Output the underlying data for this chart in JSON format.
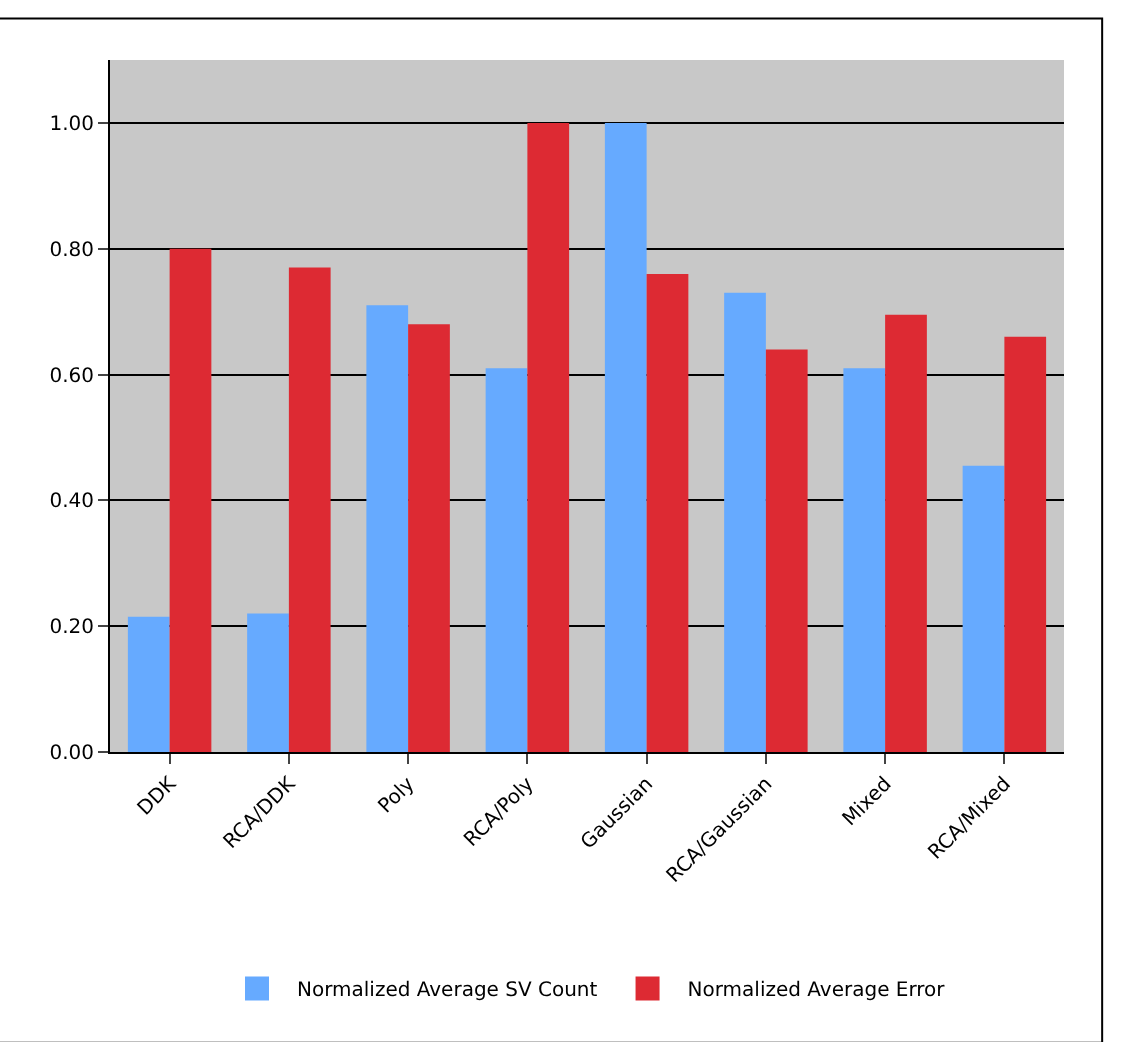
{
  "chart_data": {
    "type": "bar",
    "categories": [
      "DDK",
      "RCA/DDK",
      "Poly",
      "RCA/Poly",
      "Gaussian",
      "RCA/Gaussian",
      "Mixed",
      "RCA/Mixed"
    ],
    "series": [
      {
        "name": "Normalized Average SV Count",
        "color": "#66aaff",
        "values": [
          0.215,
          0.22,
          0.71,
          0.61,
          1.0,
          0.73,
          0.61,
          0.455
        ]
      },
      {
        "name": "Normalized Average Error",
        "color": "#dd2a33",
        "values": [
          0.8,
          0.77,
          0.68,
          1.0,
          0.76,
          0.64,
          0.695,
          0.66
        ]
      }
    ],
    "ylim": [
      0,
      1.1
    ],
    "yticks": [
      {
        "value": 0,
        "label": "0.00"
      },
      {
        "value": 0.2,
        "label": "0.20"
      },
      {
        "value": 0.4,
        "label": "0.40"
      },
      {
        "value": 0.6,
        "label": "0.60"
      },
      {
        "value": 0.8,
        "label": "0.80"
      },
      {
        "value": 1.0,
        "label": "1.00"
      }
    ],
    "grid": "y",
    "legend": "bottom"
  }
}
